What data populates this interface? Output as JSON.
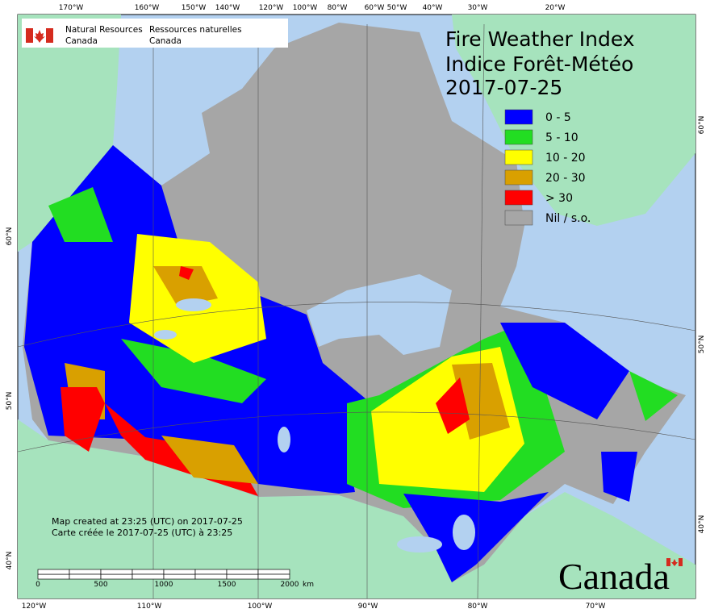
{
  "header": {
    "department_en": [
      "Natural Resources",
      "Canada"
    ],
    "department_fr": [
      "Ressources naturelles",
      "Canada"
    ]
  },
  "title": [
    "Fire Weather Index",
    "Indice Forêt-Météo"
  ],
  "date": "2017-07-25",
  "legend": [
    {
      "label": "0 - 5",
      "color": "#0000ff"
    },
    {
      "label": "5 - 10",
      "color": "#22dd22"
    },
    {
      "label": "10 - 20",
      "color": "#ffff00"
    },
    {
      "label": "20 - 30",
      "color": "#d9a000"
    },
    {
      "label": "> 30",
      "color": "#ff0000"
    },
    {
      "label": "Nil / s.o.",
      "color": "#a6a6a6"
    }
  ],
  "graticule": {
    "top": [
      "170°W",
      "160°W",
      "150°W",
      "140°W",
      "120°W",
      "100°W",
      "80°W",
      "60°W",
      "50°W",
      "40°W",
      "30°W",
      "20°W"
    ],
    "bottom": [
      "120°W",
      "110°W",
      "100°W",
      "90°W",
      "80°W",
      "70°W"
    ],
    "left": [
      "60°N",
      "50°N",
      "40°N"
    ],
    "right": [
      "60°N",
      "50°N",
      "40°N"
    ]
  },
  "notes": [
    "Map created at 23:25 (UTC) on 2017-07-25",
    "Carte créée le 2017-07-25 (UTC) à 23:25"
  ],
  "scale_bar": {
    "labels": [
      "0",
      "500",
      "1000",
      "1500",
      "2000"
    ],
    "unit": "km"
  },
  "wordmark": "Canada"
}
